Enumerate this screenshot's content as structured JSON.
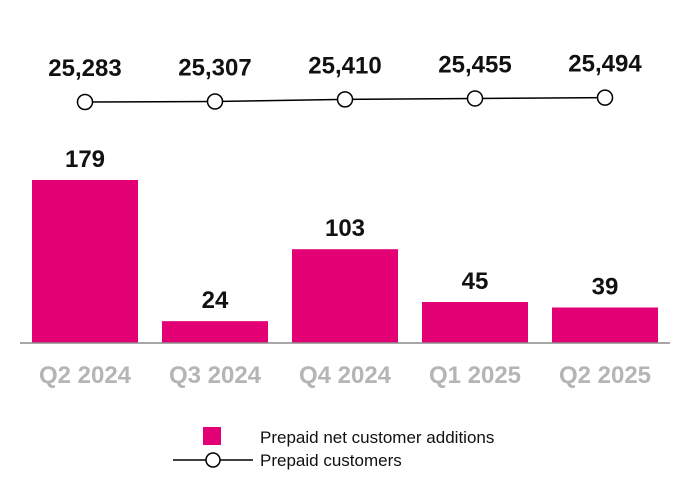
{
  "chart_data": {
    "type": "bar+line",
    "categories": [
      "Q2 2024",
      "Q3 2024",
      "Q4 2024",
      "Q1 2025",
      "Q2 2025"
    ],
    "series": [
      {
        "name": "Prepaid net customer additions",
        "kind": "bar",
        "values": [
          179,
          24,
          103,
          45,
          39
        ],
        "labels": [
          "179",
          "24",
          "103",
          "45",
          "39"
        ]
      },
      {
        "name": "Prepaid customers",
        "kind": "line",
        "values": [
          25283,
          25307,
          25410,
          25455,
          25494
        ],
        "labels": [
          "25,283",
          "25,307",
          "25,410",
          "25,455",
          "25,494"
        ]
      }
    ],
    "title": "",
    "xlabel": "",
    "ylabel": "",
    "legend": [
      "Prepaid net customer additions",
      "Prepaid customers"
    ],
    "colors": {
      "bar": "#e20074",
      "line": "#000000",
      "marker_fill": "#ffffff",
      "tick": "#b5b5b5",
      "axis": "#8a8a8a"
    }
  }
}
